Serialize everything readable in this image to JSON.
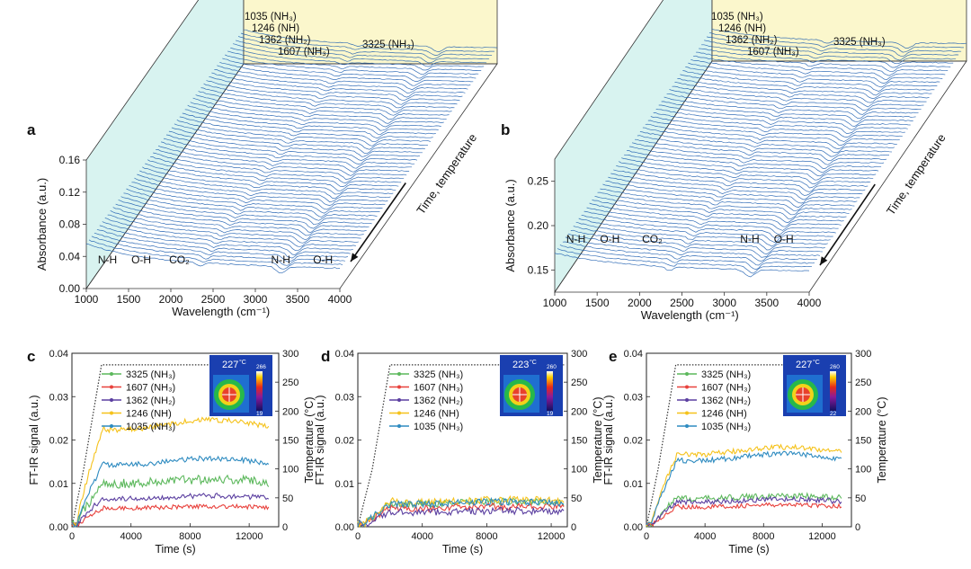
{
  "colors": {
    "blue_trace": "#1f5fb0",
    "green": "#5cb85c",
    "red": "#e8413c",
    "purple": "#5b3fa0",
    "yellow": "#f5c21b",
    "teal": "#2e8bc0",
    "wall_left": "#d8f3f0",
    "wall_back": "#fbf7cc"
  },
  "chart_data": [
    {
      "type": "waterfall",
      "panel": "a",
      "xlabel": "Wavelength (cm⁻¹)",
      "ylabel": "Absorbance (a.u.)",
      "depth_label": "Time, temperature",
      "x_ticks": [
        "1000",
        "1500",
        "2000",
        "2500",
        "3000",
        "3500",
        "4000"
      ],
      "y_ticks": [
        "0.00",
        "0.04",
        "0.08",
        "0.12",
        "0.16"
      ],
      "ylim": [
        0,
        0.16
      ],
      "xlim": [
        1000,
        4000
      ],
      "n_traces": 60,
      "peak_markers": [
        {
          "label": "1035 (NH₃)",
          "x": 1035,
          "color": "#1f5fb0"
        },
        {
          "label": "1246 (NH)",
          "x": 1246,
          "color": "#f5c21b"
        },
        {
          "label": "1362 (NH₂)",
          "x": 1362,
          "color": "#5b3fa0"
        },
        {
          "label": "1607 (NH₃)",
          "x": 1607,
          "color": "#e8413c"
        },
        {
          "label": "3325 (NH₃)",
          "x": 3325,
          "color": "#5cb85c"
        }
      ],
      "band_labels": [
        {
          "label": "N-H",
          "x": 1250
        },
        {
          "label": "O-H",
          "x": 1650
        },
        {
          "label": "CO₂",
          "x": 2100
        },
        {
          "label": "N-H",
          "x": 3300
        },
        {
          "label": "O-H",
          "x": 3800
        }
      ]
    },
    {
      "type": "waterfall",
      "panel": "b",
      "xlabel": "Wavelength (cm⁻¹)",
      "ylabel": "Absorbance (a.u.)",
      "depth_label": "Time, temperature",
      "x_ticks": [
        "1000",
        "1500",
        "2000",
        "2500",
        "3000",
        "3500",
        "4000"
      ],
      "y_ticks": [
        "0.15",
        "0.20",
        "0.25"
      ],
      "ylim": [
        0.125,
        0.275
      ],
      "xlim": [
        1000,
        4000
      ],
      "n_traces": 60,
      "peak_markers": [
        {
          "label": "1035 (NH₃)",
          "x": 1035,
          "color": "#1f5fb0"
        },
        {
          "label": "1246 (NH)",
          "x": 1246,
          "color": "#f5c21b"
        },
        {
          "label": "1362 (NH₂)",
          "x": 1362,
          "color": "#5b3fa0"
        },
        {
          "label": "1607 (NH₃)",
          "x": 1607,
          "color": "#e8413c"
        },
        {
          "label": "3325 (NH₃)",
          "x": 3325,
          "color": "#5cb85c"
        }
      ],
      "band_labels": [
        {
          "label": "N-H",
          "x": 1250
        },
        {
          "label": "O-H",
          "x": 1650
        },
        {
          "label": "CO₂",
          "x": 2150
        },
        {
          "label": "N-H",
          "x": 3300
        },
        {
          "label": "O-H",
          "x": 3700
        }
      ]
    },
    {
      "type": "line",
      "panel": "c",
      "xlabel": "Time (s)",
      "ylabel": "FT-IR signal (a.u.)",
      "y2label": "Temperature (°C)",
      "x_ticks": [
        0,
        4000,
        8000,
        12000
      ],
      "y_ticks": [
        "0.00",
        "0.01",
        "0.02",
        "0.03",
        "0.04"
      ],
      "y2_ticks": [
        "0",
        "50",
        "100",
        "150",
        "200",
        "250",
        "300"
      ],
      "xlim": [
        0,
        14000
      ],
      "ylim": [
        0,
        0.04
      ],
      "y2lim": [
        0,
        300
      ],
      "inset": {
        "temp_readout": "227",
        "unit": "°C",
        "scale_max": "266",
        "scale_min": "19"
      },
      "temperature": {
        "x": [
          0,
          800,
          2000,
          13400
        ],
        "y": [
          0,
          100,
          280,
          280
        ],
        "hold_start_y": 100
      },
      "series": [
        {
          "name": "3325 (NH₃)",
          "color": "#5cb85c",
          "plateau": 0.0105,
          "noise": 0.0011
        },
        {
          "name": "1607 (NH₃)",
          "color": "#e8413c",
          "plateau": 0.0045,
          "noise": 0.0005
        },
        {
          "name": "1362 (NH₂)",
          "color": "#5b3fa0",
          "plateau": 0.0068,
          "noise": 0.0006
        },
        {
          "name": "1246 (NH)",
          "color": "#f5c21b",
          "plateau": 0.0235,
          "noise": 0.0006
        },
        {
          "name": "1035 (NH₃)",
          "color": "#2e8bc0",
          "plateau": 0.015,
          "noise": 0.0006
        }
      ]
    },
    {
      "type": "line",
      "panel": "d",
      "xlabel": "Time (s)",
      "ylabel": "FT-IR signal (a.u.)",
      "y2label": "Temperature (°C)",
      "x_ticks": [
        0,
        4000,
        8000,
        12000
      ],
      "y_ticks": [
        "0.00",
        "0.01",
        "0.02",
        "0.03",
        "0.04"
      ],
      "y2_ticks": [
        "0",
        "50",
        "100",
        "150",
        "200",
        "250",
        "300"
      ],
      "xlim": [
        0,
        13000
      ],
      "ylim": [
        0,
        0.04
      ],
      "y2lim": [
        0,
        300
      ],
      "inset": {
        "temp_readout": "223",
        "unit": "°C",
        "scale_max": "260",
        "scale_min": "19"
      },
      "temperature": {
        "x": [
          0,
          900,
          2000,
          12800
        ],
        "y": [
          0,
          100,
          280,
          280
        ],
        "hold_start_y": 100
      },
      "series": [
        {
          "name": "3325 (NH₃)",
          "color": "#5cb85c",
          "plateau": 0.0055,
          "noise": 0.0008
        },
        {
          "name": "1607 (NH₃)",
          "color": "#e8413c",
          "plateau": 0.0045,
          "noise": 0.0008
        },
        {
          "name": "1362 (NH₂)",
          "color": "#5b3fa0",
          "plateau": 0.0035,
          "noise": 0.0008
        },
        {
          "name": "1246 (NH)",
          "color": "#f5c21b",
          "plateau": 0.006,
          "noise": 0.0008
        },
        {
          "name": "1035 (NH₃)",
          "color": "#2e8bc0",
          "plateau": 0.0055,
          "noise": 0.0008
        }
      ]
    },
    {
      "type": "line",
      "panel": "e",
      "xlabel": "Time (s)",
      "ylabel": "FT-IR signal (a.u.)",
      "y2label": "Temperature (°C)",
      "x_ticks": [
        0,
        4000,
        8000,
        12000
      ],
      "y_ticks": [
        "0.00",
        "0.01",
        "0.02",
        "0.03",
        "0.04"
      ],
      "y2_ticks": [
        "0",
        "50",
        "100",
        "150",
        "200",
        "250",
        "300"
      ],
      "xlim": [
        0,
        14000
      ],
      "ylim": [
        0,
        0.04
      ],
      "y2lim": [
        0,
        300
      ],
      "inset": {
        "temp_readout": "227",
        "unit": "°C",
        "scale_max": "260",
        "scale_min": "22"
      },
      "temperature": {
        "x": [
          0,
          800,
          2000,
          13400
        ],
        "y": [
          0,
          100,
          280,
          280
        ],
        "hold_start_y": 100
      },
      "series": [
        {
          "name": "3325 (NH₃)",
          "color": "#5cb85c",
          "plateau": 0.0068,
          "noise": 0.0007
        },
        {
          "name": "1607 (NH₃)",
          "color": "#e8413c",
          "plateau": 0.0048,
          "noise": 0.0005
        },
        {
          "name": "1362 (NH₂)",
          "color": "#5b3fa0",
          "plateau": 0.006,
          "noise": 0.0006
        },
        {
          "name": "1246 (NH)",
          "color": "#f5c21b",
          "plateau": 0.0175,
          "noise": 0.0006
        },
        {
          "name": "1035 (NH₃)",
          "color": "#2e8bc0",
          "plateau": 0.016,
          "noise": 0.0006
        }
      ]
    }
  ]
}
